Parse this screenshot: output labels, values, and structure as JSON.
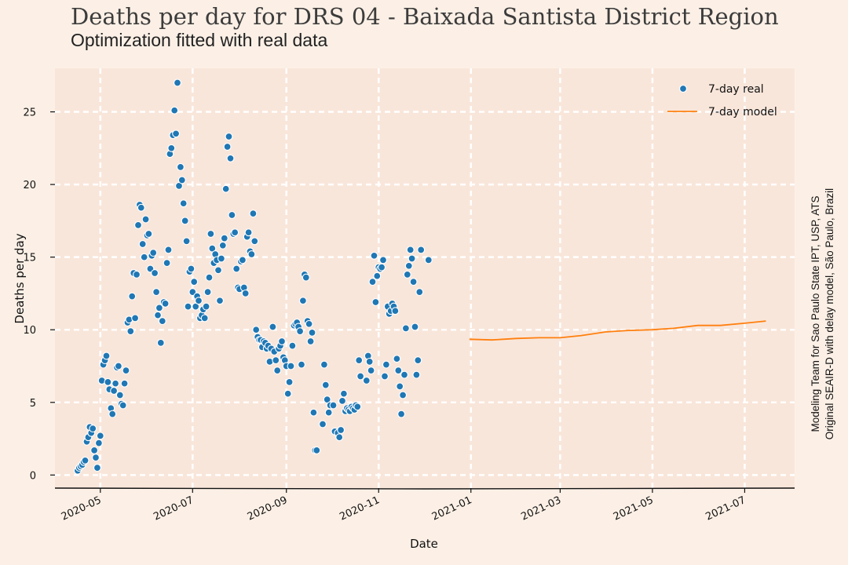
{
  "header": {
    "title": "Deaths per day for DRS 04 - Baixada Santista District Region",
    "subtitle": "Optimization fitted with real data"
  },
  "side_note": {
    "line1": "Modeling Team for Sao Paulo State IPT, USP, ATS",
    "line2": "Original SEAIR-D with delay model, São Paulo, Brazil"
  },
  "colors": {
    "background": "#fcf0e6",
    "plot_area": "#f9e6da",
    "grid": "#ffffff",
    "real": "#1f77b4",
    "model": "#ff7f0e"
  },
  "chart_data": {
    "type": "scatter",
    "xlabel": "Date",
    "ylabel": "Deaths per day",
    "xlim": [
      "2020-04-01",
      "2021-08-03"
    ],
    "ylim": [
      -0.9,
      28
    ],
    "x_ticks": [
      "2020-05",
      "2020-07",
      "2020-09",
      "2020-11",
      "2021-01",
      "2021-03",
      "2021-05",
      "2021-07"
    ],
    "y_ticks": [
      0,
      5,
      10,
      15,
      20,
      25
    ],
    "grid": true,
    "legend_position": "top-right",
    "series": [
      {
        "name": "7-day real",
        "kind": "scatter",
        "points": [
          [
            "2020-04-16",
            0.3
          ],
          [
            "2020-04-17",
            0.5
          ],
          [
            "2020-04-18",
            0.6
          ],
          [
            "2020-04-19",
            0.7
          ],
          [
            "2020-04-20",
            0.9
          ],
          [
            "2020-04-21",
            1.0
          ],
          [
            "2020-04-22",
            2.3
          ],
          [
            "2020-04-23",
            2.6
          ],
          [
            "2020-04-24",
            3.3
          ],
          [
            "2020-04-25",
            2.9
          ],
          [
            "2020-04-26",
            3.2
          ],
          [
            "2020-04-27",
            1.7
          ],
          [
            "2020-04-28",
            1.2
          ],
          [
            "2020-04-29",
            0.5
          ],
          [
            "2020-04-30",
            2.2
          ],
          [
            "2020-05-01",
            2.7
          ],
          [
            "2020-05-02",
            6.5
          ],
          [
            "2020-05-03",
            7.6
          ],
          [
            "2020-05-04",
            7.9
          ],
          [
            "2020-05-05",
            8.2
          ],
          [
            "2020-05-06",
            6.4
          ],
          [
            "2020-05-07",
            5.9
          ],
          [
            "2020-05-08",
            4.6
          ],
          [
            "2020-05-09",
            4.2
          ],
          [
            "2020-05-10",
            5.8
          ],
          [
            "2020-05-11",
            6.3
          ],
          [
            "2020-05-12",
            7.4
          ],
          [
            "2020-05-13",
            7.5
          ],
          [
            "2020-05-14",
            5.5
          ],
          [
            "2020-05-15",
            4.9
          ],
          [
            "2020-05-16",
            4.8
          ],
          [
            "2020-05-17",
            6.3
          ],
          [
            "2020-05-18",
            7.2
          ],
          [
            "2020-05-19",
            10.5
          ],
          [
            "2020-05-20",
            10.7
          ],
          [
            "2020-05-21",
            9.9
          ],
          [
            "2020-05-22",
            12.3
          ],
          [
            "2020-05-23",
            13.9
          ],
          [
            "2020-05-24",
            10.8
          ],
          [
            "2020-05-25",
            13.8
          ],
          [
            "2020-05-26",
            17.2
          ],
          [
            "2020-05-27",
            18.6
          ],
          [
            "2020-05-28",
            18.4
          ],
          [
            "2020-05-29",
            15.9
          ],
          [
            "2020-05-30",
            15.0
          ],
          [
            "2020-05-31",
            17.6
          ],
          [
            "2020-06-01",
            16.5
          ],
          [
            "2020-06-02",
            16.6
          ],
          [
            "2020-06-03",
            14.2
          ],
          [
            "2020-06-04",
            15.1
          ],
          [
            "2020-06-05",
            15.3
          ],
          [
            "2020-06-06",
            13.9
          ],
          [
            "2020-06-07",
            12.6
          ],
          [
            "2020-06-08",
            11.0
          ],
          [
            "2020-06-09",
            11.5
          ],
          [
            "2020-06-10",
            9.1
          ],
          [
            "2020-06-11",
            10.6
          ],
          [
            "2020-06-12",
            11.9
          ],
          [
            "2020-06-13",
            11.8
          ],
          [
            "2020-06-14",
            14.6
          ],
          [
            "2020-06-15",
            15.5
          ],
          [
            "2020-06-16",
            22.1
          ],
          [
            "2020-06-17",
            22.5
          ],
          [
            "2020-06-18",
            23.4
          ],
          [
            "2020-06-19",
            25.1
          ],
          [
            "2020-06-20",
            23.5
          ],
          [
            "2020-06-21",
            27.0
          ],
          [
            "2020-06-22",
            19.9
          ],
          [
            "2020-06-23",
            21.2
          ],
          [
            "2020-06-24",
            20.3
          ],
          [
            "2020-06-25",
            18.7
          ],
          [
            "2020-06-26",
            17.5
          ],
          [
            "2020-06-27",
            16.1
          ],
          [
            "2020-06-28",
            11.6
          ],
          [
            "2020-06-29",
            14.0
          ],
          [
            "2020-06-30",
            14.2
          ],
          [
            "2020-07-01",
            12.6
          ],
          [
            "2020-07-02",
            13.3
          ],
          [
            "2020-07-03",
            11.6
          ],
          [
            "2020-07-04",
            12.3
          ],
          [
            "2020-07-05",
            12.0
          ],
          [
            "2020-07-06",
            10.8
          ],
          [
            "2020-07-07",
            11.0
          ],
          [
            "2020-07-08",
            11.4
          ],
          [
            "2020-07-09",
            10.8
          ],
          [
            "2020-07-10",
            11.6
          ],
          [
            "2020-07-11",
            12.6
          ],
          [
            "2020-07-12",
            13.6
          ],
          [
            "2020-07-13",
            16.6
          ],
          [
            "2020-07-14",
            15.6
          ],
          [
            "2020-07-15",
            14.6
          ],
          [
            "2020-07-16",
            15.2
          ],
          [
            "2020-07-17",
            14.8
          ],
          [
            "2020-07-18",
            14.1
          ],
          [
            "2020-07-19",
            12.0
          ],
          [
            "2020-07-20",
            14.9
          ],
          [
            "2020-07-21",
            15.8
          ],
          [
            "2020-07-22",
            16.3
          ],
          [
            "2020-07-23",
            19.7
          ],
          [
            "2020-07-24",
            22.6
          ],
          [
            "2020-07-25",
            23.3
          ],
          [
            "2020-07-26",
            21.8
          ],
          [
            "2020-07-27",
            17.9
          ],
          [
            "2020-07-28",
            16.6
          ],
          [
            "2020-07-29",
            16.7
          ],
          [
            "2020-07-30",
            14.2
          ],
          [
            "2020-07-31",
            12.9
          ],
          [
            "2020-08-01",
            12.8
          ],
          [
            "2020-08-02",
            14.7
          ],
          [
            "2020-08-03",
            14.8
          ],
          [
            "2020-08-04",
            12.9
          ],
          [
            "2020-08-05",
            12.5
          ],
          [
            "2020-08-06",
            16.4
          ],
          [
            "2020-08-07",
            16.7
          ],
          [
            "2020-08-08",
            15.4
          ],
          [
            "2020-08-09",
            15.2
          ],
          [
            "2020-08-10",
            18.0
          ],
          [
            "2020-08-11",
            16.1
          ],
          [
            "2020-08-12",
            10.0
          ],
          [
            "2020-08-13",
            9.5
          ],
          [
            "2020-08-14",
            9.3
          ],
          [
            "2020-08-15",
            9.3
          ],
          [
            "2020-08-16",
            8.8
          ],
          [
            "2020-08-17",
            9.2
          ],
          [
            "2020-08-18",
            9.1
          ],
          [
            "2020-08-19",
            8.7
          ],
          [
            "2020-08-20",
            8.9
          ],
          [
            "2020-08-21",
            7.8
          ],
          [
            "2020-08-22",
            8.7
          ],
          [
            "2020-08-23",
            10.2
          ],
          [
            "2020-08-24",
            8.5
          ],
          [
            "2020-08-25",
            7.9
          ],
          [
            "2020-08-26",
            7.2
          ],
          [
            "2020-08-27",
            8.7
          ],
          [
            "2020-08-28",
            8.9
          ],
          [
            "2020-08-29",
            9.2
          ],
          [
            "2020-08-30",
            8.1
          ],
          [
            "2020-08-31",
            7.9
          ],
          [
            "2020-09-01",
            7.5
          ],
          [
            "2020-09-02",
            5.6
          ],
          [
            "2020-09-03",
            6.4
          ],
          [
            "2020-09-04",
            7.5
          ],
          [
            "2020-09-05",
            8.9
          ],
          [
            "2020-09-06",
            10.3
          ],
          [
            "2020-09-07",
            10.4
          ],
          [
            "2020-09-08",
            10.5
          ],
          [
            "2020-09-09",
            10.2
          ],
          [
            "2020-09-10",
            9.9
          ],
          [
            "2020-09-11",
            7.6
          ],
          [
            "2020-09-12",
            12.0
          ],
          [
            "2020-09-13",
            13.8
          ],
          [
            "2020-09-14",
            13.6
          ],
          [
            "2020-09-15",
            10.6
          ],
          [
            "2020-09-16",
            10.4
          ],
          [
            "2020-09-17",
            9.2
          ],
          [
            "2020-09-18",
            9.8
          ],
          [
            "2020-09-19",
            4.3
          ],
          [
            "2020-09-20",
            1.7
          ],
          [
            "2020-09-21",
            1.7
          ],
          [
            "2020-09-25",
            3.5
          ],
          [
            "2020-09-26",
            7.6
          ],
          [
            "2020-09-27",
            6.2
          ],
          [
            "2020-09-28",
            5.2
          ],
          [
            "2020-09-29",
            4.3
          ],
          [
            "2020-09-30",
            4.8
          ],
          [
            "2020-10-02",
            4.8
          ],
          [
            "2020-10-03",
            3.0
          ],
          [
            "2020-10-05",
            2.9
          ],
          [
            "2020-10-06",
            2.6
          ],
          [
            "2020-10-07",
            3.1
          ],
          [
            "2020-10-08",
            5.1
          ],
          [
            "2020-10-09",
            5.6
          ],
          [
            "2020-10-10",
            4.4
          ],
          [
            "2020-10-11",
            4.6
          ],
          [
            "2020-10-12",
            4.5
          ],
          [
            "2020-10-13",
            4.4
          ],
          [
            "2020-10-14",
            4.7
          ],
          [
            "2020-10-15",
            4.6
          ],
          [
            "2020-10-16",
            4.5
          ],
          [
            "2020-10-17",
            4.8
          ],
          [
            "2020-10-18",
            4.7
          ],
          [
            "2020-10-19",
            7.9
          ],
          [
            "2020-10-20",
            6.8
          ],
          [
            "2020-10-24",
            6.5
          ],
          [
            "2020-10-25",
            8.2
          ],
          [
            "2020-10-26",
            7.8
          ],
          [
            "2020-10-27",
            7.2
          ],
          [
            "2020-10-28",
            13.3
          ],
          [
            "2020-10-29",
            15.1
          ],
          [
            "2020-10-30",
            11.9
          ],
          [
            "2020-10-31",
            13.7
          ],
          [
            "2020-11-01",
            14.3
          ],
          [
            "2020-11-02",
            14.2
          ],
          [
            "2020-11-03",
            14.3
          ],
          [
            "2020-11-04",
            14.8
          ],
          [
            "2020-11-05",
            6.8
          ],
          [
            "2020-11-06",
            7.6
          ],
          [
            "2020-11-07",
            11.6
          ],
          [
            "2020-11-08",
            11.1
          ],
          [
            "2020-11-09",
            11.3
          ],
          [
            "2020-11-10",
            11.8
          ],
          [
            "2020-11-11",
            11.6
          ],
          [
            "2020-11-12",
            11.3
          ],
          [
            "2020-11-13",
            8.0
          ],
          [
            "2020-11-14",
            7.2
          ],
          [
            "2020-11-15",
            6.1
          ],
          [
            "2020-11-16",
            4.2
          ],
          [
            "2020-11-17",
            5.5
          ],
          [
            "2020-11-18",
            6.9
          ],
          [
            "2020-11-19",
            10.1
          ],
          [
            "2020-11-20",
            13.8
          ],
          [
            "2020-11-21",
            14.4
          ],
          [
            "2020-11-22",
            15.5
          ],
          [
            "2020-11-23",
            14.9
          ],
          [
            "2020-11-24",
            13.3
          ],
          [
            "2020-11-25",
            10.2
          ],
          [
            "2020-11-26",
            6.9
          ],
          [
            "2020-11-27",
            7.9
          ],
          [
            "2020-11-28",
            12.6
          ],
          [
            "2020-11-29",
            15.5
          ],
          [
            "2020-12-04",
            14.8
          ]
        ]
      },
      {
        "name": "7-day model",
        "kind": "line",
        "points": [
          [
            "2020-12-31",
            9.35
          ],
          [
            "2021-01-15",
            9.3
          ],
          [
            "2021-01-31",
            9.4
          ],
          [
            "2021-02-15",
            9.45
          ],
          [
            "2021-03-01",
            9.45
          ],
          [
            "2021-03-15",
            9.6
          ],
          [
            "2021-03-31",
            9.85
          ],
          [
            "2021-04-15",
            9.95
          ],
          [
            "2021-05-01",
            10.0
          ],
          [
            "2021-05-15",
            10.1
          ],
          [
            "2021-05-31",
            10.3
          ],
          [
            "2021-06-15",
            10.3
          ],
          [
            "2021-07-01",
            10.45
          ],
          [
            "2021-07-15",
            10.6
          ]
        ]
      }
    ]
  }
}
